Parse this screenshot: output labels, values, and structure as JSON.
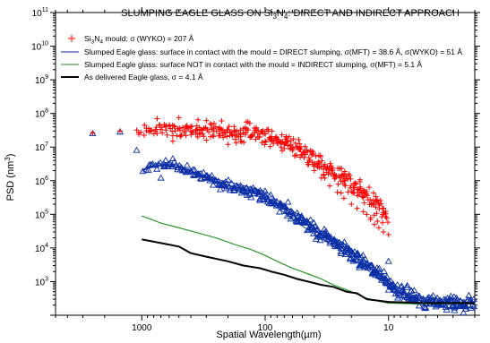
{
  "chart_data": {
    "type": "scatter",
    "title": "SLUMPING EAGLE GLASS ON Si3N4: DIRECT AND INDIRECT APPROACH",
    "title_parts": {
      "pre": "SLUMPING EAGLE GLASS ON Si",
      "sub1": "3",
      "mid": "N",
      "sub2": "4",
      "post": ": DIRECT AND INDIRECT APPROACH"
    },
    "xlabel": "Spatial Wavelength(µm)",
    "ylabel": "PSD (nm³)",
    "ylabel_parts": {
      "pre": "PSD (nm",
      "sup": "3",
      "post": ")"
    },
    "x_scale": "log",
    "y_scale": "log",
    "x_reversed": true,
    "xlim": [
      5000,
      2
    ],
    "ylim": [
      100,
      100000000000
    ],
    "x_tick_labels": [
      {
        "value": 1000,
        "label": "1000"
      },
      {
        "value": 100,
        "label": "100"
      },
      {
        "value": 10,
        "label": "10"
      }
    ],
    "y_tick_labels": [
      {
        "value": 1000,
        "base": "10",
        "exp": "3"
      },
      {
        "value": 10000,
        "base": "10",
        "exp": "4"
      },
      {
        "value": 100000,
        "base": "10",
        "exp": "5"
      },
      {
        "value": 1000000,
        "base": "10",
        "exp": "6"
      },
      {
        "value": 10000000,
        "base": "10",
        "exp": "7"
      },
      {
        "value": 100000000,
        "base": "10",
        "exp": "8"
      },
      {
        "value": 1000000000,
        "base": "10",
        "exp": "9"
      },
      {
        "value": 10000000000,
        "base": "10",
        "exp": "10"
      },
      {
        "value": 100000000000,
        "base": "10",
        "exp": "11"
      }
    ],
    "legend_position": "top-left",
    "series": [
      {
        "key": "mould",
        "marker": "plus",
        "color": "#ff0000",
        "legend": {
          "pre": "Si",
          "sub1": "3",
          "mid": "N",
          "sub2": "4",
          "post": " mould: σ (WYKO) = 207 Å"
        },
        "points": [
          [
            2500,
            26000000.0
          ],
          [
            1500,
            30000000.0
          ],
          [
            1100,
            32000000.0
          ],
          [
            950,
            45000000.0
          ],
          [
            850,
            30000000.0
          ],
          [
            750,
            70000000.0
          ],
          [
            640,
            40000000.0
          ],
          [
            560,
            15000000.0
          ],
          [
            500,
            75000000.0
          ],
          [
            450,
            30000000.0
          ],
          [
            400,
            40000000.0
          ],
          [
            350,
            65000000.0
          ],
          [
            300,
            16000000.0
          ],
          [
            260,
            30000000.0
          ],
          [
            230,
            35000000.0
          ],
          [
            200,
            12000000.0
          ],
          [
            170,
            30000000.0
          ],
          [
            150,
            35000000.0
          ],
          [
            130,
            20000000.0
          ],
          [
            115,
            20000000.0
          ],
          [
            100,
            15000000.0
          ],
          [
            90,
            18000000.0
          ],
          [
            80,
            13000000.0
          ],
          [
            70,
            12000000.0
          ],
          [
            60,
            8000000.0
          ],
          [
            52,
            5000000.0
          ],
          [
            45,
            3000000.0
          ],
          [
            40,
            2000000.0
          ],
          [
            35,
            1200000.0
          ],
          [
            30,
            700000.0
          ],
          [
            26,
            450000.0
          ],
          [
            23,
            300000.0
          ],
          [
            20,
            200000.0
          ],
          [
            18,
            150000.0
          ],
          [
            16,
            120000.0
          ],
          [
            15,
            100000.0
          ],
          [
            14,
            70000.0
          ],
          [
            13,
            50000.0
          ],
          [
            12,
            40000.0
          ],
          [
            11,
            30000.0
          ],
          [
            10,
            25000.0
          ]
        ],
        "trend": [
          [
            1100,
            30000000.0
          ],
          [
            800,
            35000000.0
          ],
          [
            500,
            30000000.0
          ],
          [
            300,
            30000000.0
          ],
          [
            200,
            28000000.0
          ],
          [
            120,
            25000000.0
          ],
          [
            80,
            18000000.0
          ],
          [
            50,
            8000000.0
          ],
          [
            35,
            3000000.0
          ],
          [
            25,
            1200000.0
          ],
          [
            20,
            700000.0
          ],
          [
            15,
            300000.0
          ],
          [
            12,
            150000.0
          ],
          [
            10,
            80000.0
          ]
        ],
        "scatter": [
          0.35,
          0.6
        ]
      },
      {
        "key": "direct",
        "marker": "triangle",
        "color": "#0a2ea5",
        "legend": {
          "text": "Slumped Eagle glass: surface in contact with the mould = DIRECT slumping, σ(MFT)  = 38.6 Å, σ(WYKO)  = 51 Å"
        },
        "points": [
          [
            2500,
            25000000.0
          ],
          [
            1500,
            28000000.0
          ],
          [
            1100,
            8000000.0
          ],
          [
            850,
            3000000.0
          ],
          [
            700,
            1200000.0
          ],
          [
            640,
            4000000.0
          ],
          [
            560,
            4500000.0
          ],
          [
            450,
            2000000.0
          ],
          [
            350,
            1600000.0
          ],
          [
            280,
            1000000.0
          ],
          [
            220,
            800000.0
          ],
          [
            180,
            600000.0
          ],
          [
            150,
            500000.0
          ],
          [
            130,
            500000.0
          ],
          [
            110,
            400000.0
          ],
          [
            100,
            350000.0
          ],
          [
            85,
            250000.0
          ],
          [
            75,
            180000.0
          ],
          [
            65,
            120000.0
          ],
          [
            55,
            80000.0
          ],
          [
            48,
            60000.0
          ],
          [
            42,
            40000.0
          ],
          [
            36,
            25000.0
          ],
          [
            32,
            20000.0
          ],
          [
            28,
            15000.0
          ],
          [
            25,
            12000.0
          ],
          [
            22,
            10000.0
          ],
          [
            20,
            8000.0
          ],
          [
            18,
            6000.0
          ],
          [
            16,
            4000.0
          ],
          [
            14,
            3000.0
          ],
          [
            13,
            2000.0
          ],
          [
            12,
            1500.0
          ],
          [
            10.5,
            1200.0
          ],
          [
            10,
            4000.0
          ]
        ],
        "trend": [
          [
            1000,
            2000000.0
          ],
          [
            700,
            3000000.0
          ],
          [
            500,
            2500000.0
          ],
          [
            300,
            1200000.0
          ],
          [
            200,
            700000.0
          ],
          [
            130,
            500000.0
          ],
          [
            100,
            350000.0
          ],
          [
            70,
            150000.0
          ],
          [
            50,
            60000.0
          ],
          [
            35,
            25000.0
          ],
          [
            25,
            12000.0
          ],
          [
            18,
            5000.0
          ],
          [
            14,
            2500.0
          ],
          [
            11,
            1200.0
          ],
          [
            9,
            600.0
          ],
          [
            7,
            350.0
          ],
          [
            5,
            250.0
          ],
          [
            3,
            220.0
          ],
          [
            2,
            220.0
          ]
        ],
        "scatter": [
          0.25,
          0.4
        ]
      },
      {
        "key": "indirect",
        "marker": "line",
        "color": "#1a8c1a",
        "legend": {
          "text": "Slumped Eagle glass: surface NOT in contact with the mould = INDIRECT slumping, σ(MFT)  = 5.1 Å"
        },
        "line": [
          [
            1000,
            90000.0
          ],
          [
            700,
            55000.0
          ],
          [
            500,
            40000.0
          ],
          [
            350,
            28000.0
          ],
          [
            250,
            20000.0
          ],
          [
            180,
            13000.0
          ],
          [
            130,
            9000.0
          ],
          [
            100,
            6000.0
          ],
          [
            80,
            4000.0
          ],
          [
            60,
            2500.0
          ],
          [
            45,
            1700.0
          ],
          [
            35,
            1200.0
          ],
          [
            28,
            800.0
          ],
          [
            20,
            500.0
          ],
          [
            15,
            320.0
          ],
          [
            12,
            260.0
          ],
          [
            10,
            230.0
          ],
          [
            7,
            220.0
          ],
          [
            5,
            220.0
          ],
          [
            3,
            220.0
          ],
          [
            2,
            230.0
          ]
        ]
      },
      {
        "key": "delivered",
        "marker": "line",
        "color": "#000000",
        "legend": {
          "text": "As delivered Eagle glass, σ  = 4.1 Å"
        },
        "line": [
          [
            1000,
            18000.0
          ],
          [
            700,
            14000.0
          ],
          [
            500,
            11000.0
          ],
          [
            400,
            7000.0
          ],
          [
            300,
            5500.0
          ],
          [
            200,
            4000.0
          ],
          [
            150,
            3000.0
          ],
          [
            110,
            2500.0
          ],
          [
            90,
            2000.0
          ],
          [
            70,
            1600.0
          ],
          [
            55,
            1200.0
          ],
          [
            45,
            1000.0
          ],
          [
            35,
            800.0
          ],
          [
            28,
            700.0
          ],
          [
            22,
            500.0
          ],
          [
            18,
            450.0
          ],
          [
            15,
            300.0
          ],
          [
            12,
            270.0
          ],
          [
            10,
            250.0
          ],
          [
            7,
            240.0
          ],
          [
            5,
            230.0
          ],
          [
            3,
            230.0
          ],
          [
            2,
            230.0
          ]
        ]
      }
    ]
  }
}
